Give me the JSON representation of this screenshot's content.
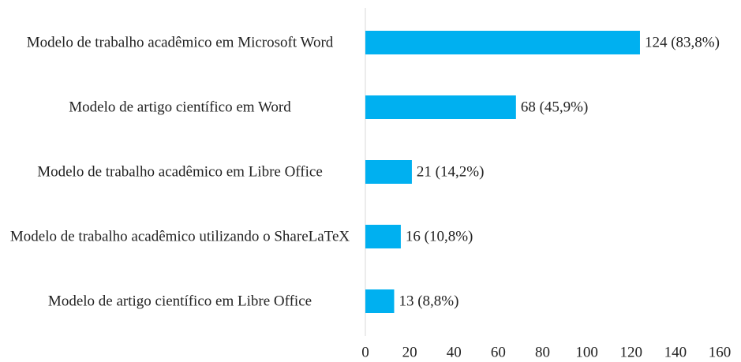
{
  "chart_data": {
    "type": "barh",
    "categories": [
      "Modelo de trabalho acadêmico em Microsoft Word",
      "Modelo de artigo científico em Word",
      "Modelo de trabalho acadêmico em Libre Office",
      "Modelo de trabalho acadêmico utilizando o ShareLaTeX",
      "Modelo de artigo científico em Libre Office"
    ],
    "values": [
      124,
      68,
      21,
      16,
      13
    ],
    "value_labels": [
      "124 (83,8%)",
      "68 (45,9%)",
      "21 (14,2%)",
      "16 (10,8%)",
      "13 (8,8%)"
    ],
    "color": "#00b0f0",
    "xlim": [
      0,
      160
    ],
    "xticks": [
      0,
      20,
      40,
      60,
      80,
      100,
      120,
      140,
      160
    ],
    "grid": false
  }
}
